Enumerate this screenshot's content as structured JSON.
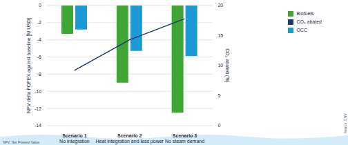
{
  "chart_data": {
    "type": "bar",
    "categories": [
      "Scenario 1\nNo integration",
      "Scenario 2\nHeat integration and less power",
      "Scenario 3\nNo steam demand"
    ],
    "series": [
      {
        "name": "Biofuels",
        "color": "#3fa535",
        "type": "bar",
        "values": [
          -3.3,
          -9,
          -12.5
        ]
      },
      {
        "name": "OCC",
        "color": "#1d9ad6",
        "type": "bar",
        "values": [
          -2.8,
          -5.3,
          -5.9
        ]
      },
      {
        "name": "CO₂ abated",
        "color": "#1b3a6b",
        "type": "line",
        "axis": "y2",
        "values": [
          9.2,
          14.3,
          17.8
        ]
      }
    ],
    "y_label": "NPV delta FOPEX against baseline [M USD]",
    "y2_label": "CO₂ abated (%)",
    "ylim": [
      -14,
      0
    ],
    "yticks": [
      -14,
      -12,
      -10,
      -8,
      -6,
      -4,
      -2,
      0
    ],
    "y2lim": [
      0,
      20
    ],
    "y2ticks": [
      0,
      5,
      10,
      15,
      20
    ],
    "grid": true,
    "legend": "top right",
    "annotations": [
      "NPV: Net Present Value",
      "Source: DNV"
    ]
  }
}
